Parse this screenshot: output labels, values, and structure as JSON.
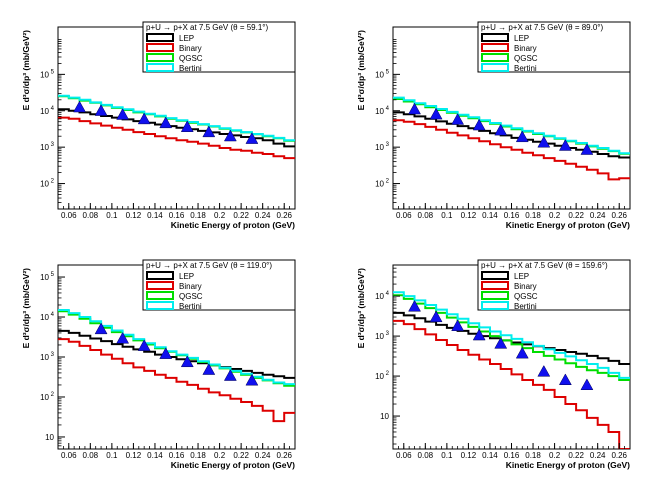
{
  "chart_data": [
    {
      "type": "line",
      "title": "p+U → p+X at 7.5 GeV (θ =  59.1°)",
      "xlabel": "Kinetic Energy of proton (GeV)",
      "ylabel": "E d³σ/dp³ (mb/GeV²)",
      "xlim": [
        0.05,
        0.27
      ],
      "ylim": [
        20,
        2000000
      ],
      "yscale": "log",
      "x_ticks": [
        "0.06",
        "0.08",
        "0.1",
        "0.12",
        "0.14",
        "0.16",
        "0.18",
        "0.2",
        "0.22",
        "0.24",
        "0.26"
      ],
      "y_ticks": [
        {
          "v": 100,
          "t": "10",
          "e": "2"
        },
        {
          "v": 1000,
          "t": "10",
          "e": "3"
        },
        {
          "v": 10000,
          "t": "10",
          "e": "4"
        },
        {
          "v": 100000,
          "t": "10",
          "e": "5"
        }
      ],
      "x_edges": [
        0.05,
        0.06,
        0.07,
        0.08,
        0.09,
        0.1,
        0.11,
        0.12,
        0.13,
        0.14,
        0.15,
        0.16,
        0.17,
        0.18,
        0.19,
        0.2,
        0.21,
        0.22,
        0.23,
        0.24,
        0.25,
        0.26,
        0.27
      ],
      "series": [
        {
          "name": "LEP",
          "color": "#000000",
          "values": [
            11000,
            10000,
            9000,
            8000,
            7200,
            6500,
            5800,
            5200,
            4700,
            4200,
            3800,
            3400,
            3100,
            2800,
            2550,
            2300,
            2100,
            1900,
            1750,
            1550,
            1250,
            1050
          ]
        },
        {
          "name": "Binary",
          "color": "#dd0000",
          "values": [
            6500,
            6000,
            5200,
            4500,
            3900,
            3400,
            3000,
            2600,
            2300,
            2000,
            1750,
            1550,
            1400,
            1250,
            1100,
            950,
            850,
            800,
            700,
            650,
            560,
            500
          ]
        },
        {
          "name": "QGSC",
          "color": "#00dd00",
          "values": [
            25000,
            22000,
            19000,
            16500,
            14000,
            12000,
            10500,
            9000,
            8000,
            7000,
            6000,
            5300,
            4700,
            4200,
            3700,
            3200,
            2850,
            2550,
            2250,
            2000,
            1750,
            1500
          ]
        },
        {
          "name": "Bertini",
          "color": "#00eeee",
          "values": [
            26000,
            23000,
            20000,
            17000,
            14500,
            12500,
            11000,
            9500,
            8300,
            7300,
            6300,
            5500,
            4900,
            4300,
            3800,
            3300,
            2900,
            2600,
            2300,
            2050,
            1800,
            1550
          ]
        }
      ],
      "data_points": {
        "x": [
          0.07,
          0.09,
          0.11,
          0.13,
          0.15,
          0.17,
          0.19,
          0.21,
          0.23
        ],
        "y": [
          12500,
          10000,
          7800,
          5900,
          4600,
          3600,
          2600,
          2000,
          1700
        ]
      },
      "legend_position": "top-right"
    },
    {
      "type": "line",
      "title": "p+U → p+X at 7.5 GeV (θ =  89.0°)",
      "xlabel": "Kinetic Energy of proton (GeV)",
      "ylabel": "E d³σ/dp³ (mb/GeV²)",
      "xlim": [
        0.05,
        0.27
      ],
      "ylim": [
        20,
        2000000
      ],
      "yscale": "log",
      "x_ticks": [
        "0.06",
        "0.08",
        "0.1",
        "0.12",
        "0.14",
        "0.16",
        "0.18",
        "0.2",
        "0.22",
        "0.24",
        "0.26"
      ],
      "y_ticks": [
        {
          "v": 100,
          "t": "10",
          "e": "2"
        },
        {
          "v": 1000,
          "t": "10",
          "e": "3"
        },
        {
          "v": 10000,
          "t": "10",
          "e": "4"
        },
        {
          "v": 100000,
          "t": "10",
          "e": "5"
        }
      ],
      "x_edges": [
        0.05,
        0.06,
        0.07,
        0.08,
        0.09,
        0.1,
        0.11,
        0.12,
        0.13,
        0.14,
        0.15,
        0.16,
        0.17,
        0.18,
        0.19,
        0.2,
        0.21,
        0.22,
        0.23,
        0.24,
        0.25,
        0.26,
        0.27
      ],
      "series": [
        {
          "name": "LEP",
          "color": "#000000",
          "values": [
            9000,
            8000,
            7000,
            6000,
            5100,
            4400,
            3800,
            3300,
            2800,
            2400,
            2100,
            1800,
            1600,
            1400,
            1250,
            1100,
            950,
            850,
            750,
            650,
            560,
            520
          ]
        },
        {
          "name": "Binary",
          "color": "#dd0000",
          "values": [
            5500,
            5000,
            4300,
            3600,
            3000,
            2500,
            2100,
            1750,
            1450,
            1200,
            1000,
            850,
            700,
            600,
            500,
            420,
            350,
            290,
            240,
            190,
            130,
            140
          ]
        },
        {
          "name": "QGSC",
          "color": "#00dd00",
          "values": [
            21000,
            18000,
            15000,
            12500,
            10500,
            8800,
            7300,
            6200,
            5200,
            4400,
            3700,
            3100,
            2700,
            2300,
            2000,
            1700,
            1450,
            1250,
            1050,
            900,
            780,
            660
          ]
        },
        {
          "name": "Bertini",
          "color": "#00eeee",
          "values": [
            23000,
            19500,
            16000,
            13500,
            11200,
            9300,
            7800,
            6600,
            5500,
            4600,
            3900,
            3300,
            2800,
            2400,
            2050,
            1750,
            1500,
            1300,
            1100,
            950,
            800,
            680
          ]
        }
      ],
      "data_points": {
        "x": [
          0.07,
          0.09,
          0.11,
          0.13,
          0.15,
          0.17,
          0.19,
          0.21,
          0.23
        ],
        "y": [
          11000,
          8000,
          5700,
          4000,
          2900,
          1900,
          1350,
          1100,
          850
        ]
      },
      "legend_position": "top-right"
    },
    {
      "type": "line",
      "title": "p+U → p+X at 7.5 GeV (θ = 119.0°)",
      "xlabel": "Kinetic Energy of proton (GeV)",
      "ylabel": "E d³σ/dp³ (mb/GeV²)",
      "xlim": [
        0.05,
        0.27
      ],
      "ylim": [
        5,
        200000
      ],
      "yscale": "log",
      "x_ticks": [
        "0.06",
        "0.08",
        "0.1",
        "0.12",
        "0.14",
        "0.16",
        "0.18",
        "0.2",
        "0.22",
        "0.24",
        "0.26"
      ],
      "y_ticks": [
        {
          "v": 10,
          "t": "10",
          "e": ""
        },
        {
          "v": 100,
          "t": "10",
          "e": "2"
        },
        {
          "v": 1000,
          "t": "10",
          "e": "3"
        },
        {
          "v": 10000,
          "t": "10",
          "e": "4"
        },
        {
          "v": 100000,
          "t": "10",
          "e": "5"
        }
      ],
      "x_edges": [
        0.05,
        0.06,
        0.07,
        0.08,
        0.09,
        0.1,
        0.11,
        0.12,
        0.13,
        0.14,
        0.15,
        0.16,
        0.17,
        0.18,
        0.19,
        0.2,
        0.21,
        0.22,
        0.23,
        0.24,
        0.25,
        0.26,
        0.27
      ],
      "series": [
        {
          "name": "LEP",
          "color": "#000000",
          "values": [
            4500,
            4000,
            3400,
            2900,
            2500,
            2100,
            1800,
            1550,
            1350,
            1150,
            1000,
            880,
            780,
            700,
            620,
            560,
            500,
            450,
            400,
            360,
            330,
            300
          ]
        },
        {
          "name": "Binary",
          "color": "#dd0000",
          "values": [
            2800,
            2400,
            1900,
            1500,
            1150,
            900,
            700,
            550,
            450,
            360,
            300,
            240,
            200,
            160,
            130,
            110,
            90,
            75,
            60,
            45,
            25,
            40
          ]
        },
        {
          "name": "QGSC",
          "color": "#00dd00",
          "values": [
            14000,
            11500,
            9000,
            7000,
            5400,
            4200,
            3300,
            2600,
            2050,
            1650,
            1350,
            1100,
            900,
            750,
            620,
            520,
            430,
            360,
            300,
            260,
            220,
            190
          ]
        },
        {
          "name": "Bertini",
          "color": "#00eeee",
          "values": [
            15000,
            12500,
            10000,
            7800,
            6000,
            4600,
            3600,
            2800,
            2200,
            1750,
            1400,
            1150,
            950,
            780,
            650,
            540,
            450,
            380,
            320,
            270,
            230,
            210
          ]
        }
      ],
      "data_points": {
        "x": [
          0.09,
          0.11,
          0.13,
          0.15,
          0.17,
          0.19,
          0.21,
          0.23
        ],
        "y": [
          5000,
          2900,
          1900,
          1200,
          750,
          480,
          340,
          260
        ]
      },
      "legend_position": "top-right"
    },
    {
      "type": "line",
      "title": "p+U → p+X at 7.5 GeV (θ = 159.6°)",
      "xlabel": "Kinetic Energy of proton (GeV)",
      "ylabel": "E d³σ/dp³ (mb/GeV²)",
      "xlim": [
        0.05,
        0.27
      ],
      "ylim": [
        1.5,
        60000
      ],
      "yscale": "log",
      "x_ticks": [
        "0.06",
        "0.08",
        "0.1",
        "0.12",
        "0.14",
        "0.16",
        "0.18",
        "0.2",
        "0.22",
        "0.24",
        "0.26"
      ],
      "y_ticks": [
        {
          "v": 10,
          "t": "10",
          "e": ""
        },
        {
          "v": 100,
          "t": "10",
          "e": "2"
        },
        {
          "v": 1000,
          "t": "10",
          "e": "3"
        },
        {
          "v": 10000,
          "t": "10",
          "e": "4"
        }
      ],
      "x_edges": [
        0.05,
        0.06,
        0.07,
        0.08,
        0.09,
        0.1,
        0.11,
        0.12,
        0.13,
        0.14,
        0.15,
        0.16,
        0.17,
        0.18,
        0.19,
        0.2,
        0.21,
        0.22,
        0.23,
        0.24,
        0.25,
        0.26,
        0.27
      ],
      "series": [
        {
          "name": "LEP",
          "color": "#000000",
          "values": [
            3800,
            3300,
            2800,
            2300,
            1900,
            1600,
            1350,
            1150,
            1000,
            880,
            780,
            690,
            620,
            560,
            500,
            450,
            400,
            360,
            320,
            280,
            240,
            200
          ]
        },
        {
          "name": "Binary",
          "color": "#dd0000",
          "values": [
            2400,
            2000,
            1500,
            1100,
            800,
            600,
            450,
            340,
            260,
            200,
            150,
            110,
            80,
            60,
            45,
            30,
            20,
            14,
            9,
            6,
            4,
            1.5
          ]
        },
        {
          "name": "QGSC",
          "color": "#00dd00",
          "values": [
            10500,
            8500,
            6500,
            5000,
            3800,
            2900,
            2200,
            1700,
            1300,
            1000,
            780,
            620,
            500,
            400,
            320,
            260,
            210,
            170,
            140,
            120,
            100,
            80
          ]
        },
        {
          "name": "Bertini",
          "color": "#00eeee",
          "values": [
            12500,
            10000,
            7800,
            6000,
            4600,
            3500,
            2700,
            2100,
            1650,
            1300,
            1050,
            850,
            700,
            570,
            470,
            380,
            310,
            250,
            200,
            160,
            120,
            90
          ]
        }
      ],
      "data_points": {
        "x": [
          0.07,
          0.09,
          0.11,
          0.13,
          0.15,
          0.17,
          0.19,
          0.21,
          0.23
        ],
        "y": [
          5500,
          3000,
          1800,
          1050,
          650,
          370,
          130,
          80,
          60
        ]
      },
      "legend_position": "top-right"
    }
  ]
}
